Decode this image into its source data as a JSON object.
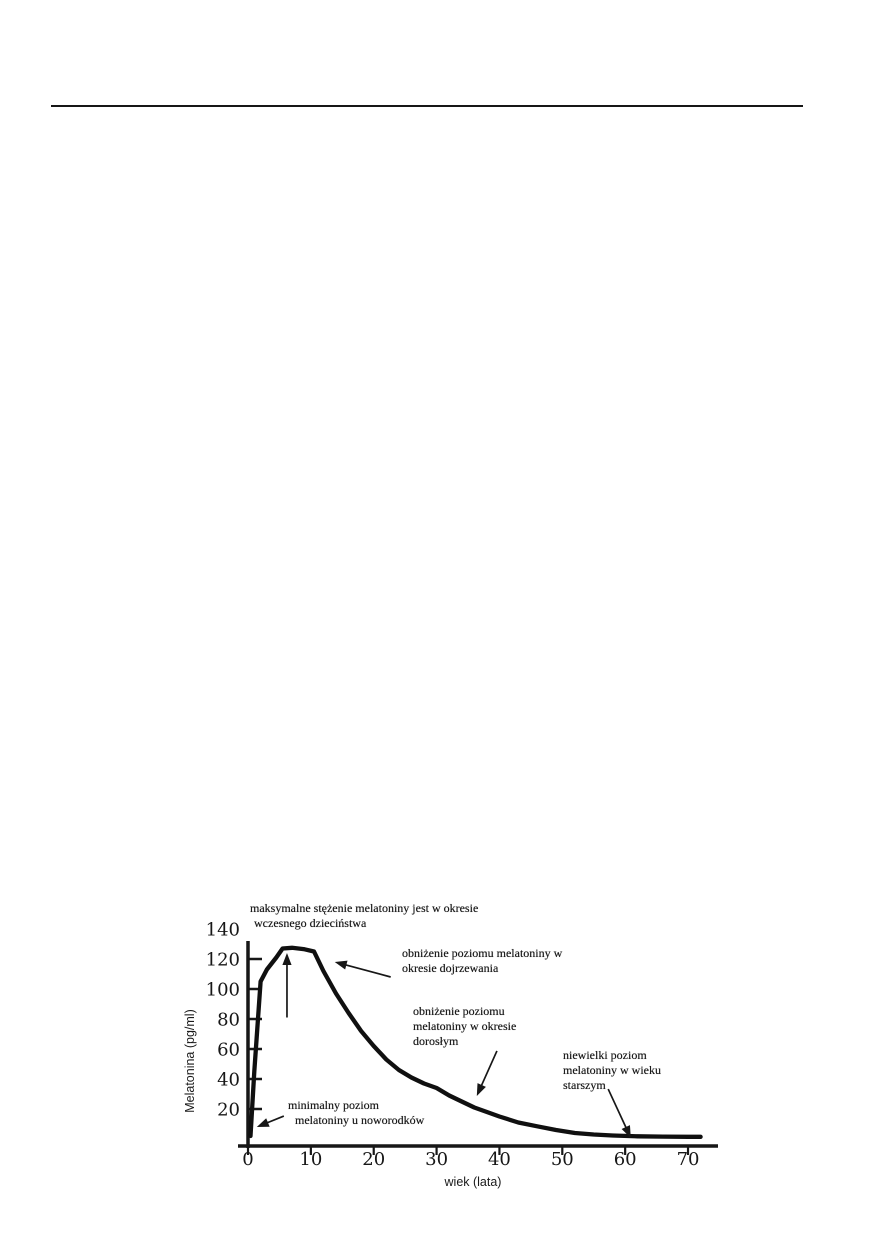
{
  "page": {
    "background": "#ffffff",
    "rule_color": "#161616",
    "ink_color": "#171717"
  },
  "chart_data": {
    "type": "line",
    "title": "",
    "xlabel": "wiek (lata)",
    "ylabel": "Melatonina (pg/ml)",
    "xlim": [
      0,
      72
    ],
    "ylim": [
      0,
      140
    ],
    "xticks": [
      0,
      10,
      20,
      30,
      40,
      50,
      60,
      70
    ],
    "yticks": [
      20,
      40,
      60,
      80,
      100,
      120,
      140
    ],
    "grid": false,
    "legend_position": null,
    "series": [
      {
        "name": "melatonina",
        "x": [
          0.4,
          1,
          2,
          3,
          4.5,
          5.5,
          7,
          9,
          10.5,
          12,
          14,
          16,
          18,
          20,
          22,
          24,
          26,
          28,
          30,
          32,
          34,
          36,
          38,
          40,
          43,
          46,
          49,
          52,
          55,
          58,
          62,
          66,
          70,
          72
        ],
        "y": [
          2,
          45,
          105,
          113,
          121,
          127,
          127.5,
          126.5,
          125,
          112,
          97,
          84,
          72,
          62,
          53,
          46,
          41,
          37,
          34,
          29,
          25,
          21,
          18,
          15,
          11,
          8.5,
          6,
          4,
          3,
          2.3,
          1.8,
          1.6,
          1.5,
          1.5
        ]
      }
    ],
    "annotations": [
      {
        "id": "max-childhood",
        "lines": [
          "maksymalne stężenie melatoniny jest w okresie",
          "wczesnego dzieciństwa"
        ],
        "arrow": {
          "from_xy": [
            6.2,
            81
          ],
          "to_xy": [
            6.2,
            124
          ]
        }
      },
      {
        "id": "puberty-decline",
        "lines": [
          "obniżenie poziomu melatoniny w",
          "okresie dojrzewania"
        ],
        "arrow": {
          "from_xy": [
            22.7,
            108
          ],
          "to_xy": [
            13.8,
            118
          ]
        }
      },
      {
        "id": "adult-decline",
        "lines": [
          "obniżenie poziomu",
          "melatoniny w okresie",
          "dorosłym"
        ],
        "arrow": {
          "from_xy": [
            39.6,
            58.7
          ],
          "to_xy": [
            36.4,
            28.7
          ]
        }
      },
      {
        "id": "elderly-level",
        "lines": [
          "niewielki poziom",
          "melatoniny w wieku",
          "starszym"
        ],
        "arrow": {
          "from_xy": [
            57.3,
            33.3
          ],
          "to_xy": [
            60.9,
            0.7
          ]
        }
      },
      {
        "id": "newborn-minimum",
        "lines": [
          "minimalny poziom",
          "melatoniny u noworodków"
        ],
        "arrow": {
          "from_xy": [
            5.7,
            15.3
          ],
          "to_xy": [
            1.4,
            8
          ]
        }
      }
    ]
  }
}
